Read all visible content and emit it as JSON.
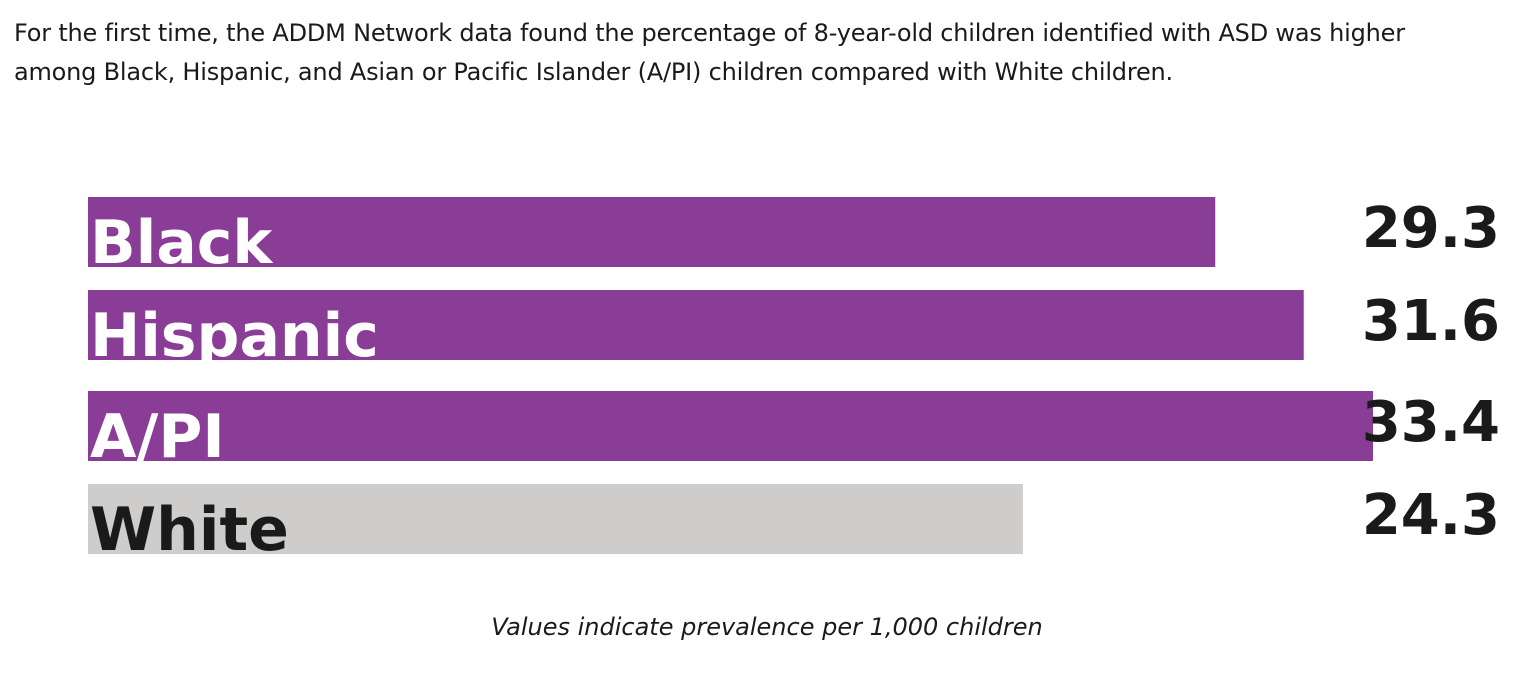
{
  "intro_text": "For the first time, the ADDM Network data found the percentage of 8-year-old children identified with ASD was higher among Black, Hispanic, and Asian or Pacific Islander (A/PI) children compared with White children.",
  "note_text": "Values indicate prevalence per 1,000 children",
  "chart_data": {
    "type": "bar",
    "orientation": "horizontal",
    "title": "",
    "xlabel": "",
    "ylabel": "",
    "categories": [
      "Black",
      "Hispanic",
      "A/PI",
      "White"
    ],
    "values": [
      29.3,
      31.6,
      33.4,
      24.3
    ],
    "value_labels": [
      "29.3",
      "31.6",
      "33.4",
      "24.3"
    ],
    "units": "per 1,000 children",
    "xlim": [
      0,
      33.4
    ],
    "grid": false,
    "legend": "none",
    "colors": {
      "Black": "#8a3d96",
      "Hispanic": "#8a3d96",
      "A/PI": "#8a3d96",
      "White": "#cecdcc"
    },
    "label_colors": {
      "Black": "#ffffff",
      "Hispanic": "#ffffff",
      "A/PI": "#ffffff",
      "White": "#1a1a1a"
    }
  }
}
